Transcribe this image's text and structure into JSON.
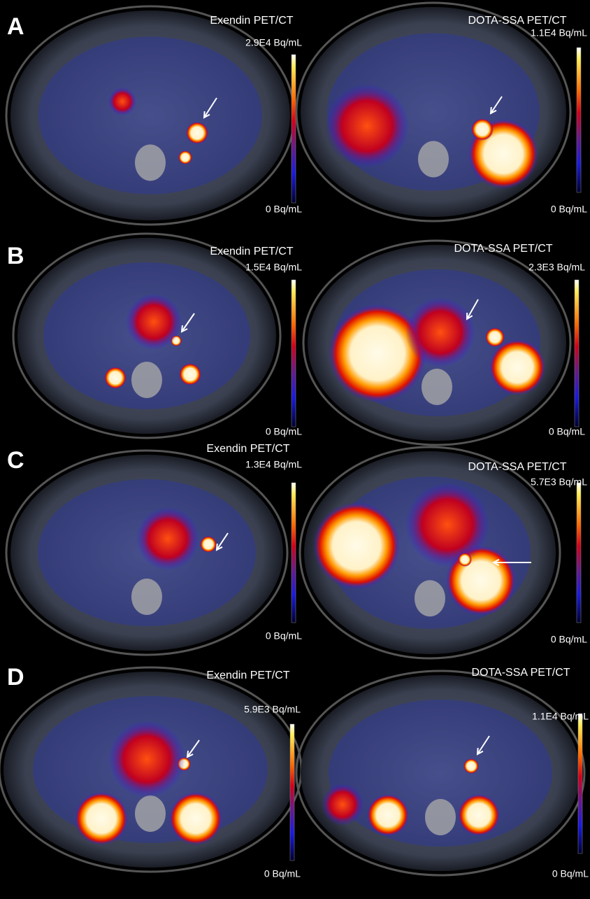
{
  "panels": [
    {
      "letter": "A",
      "images": [
        {
          "title": "Exendin PET/CT",
          "max_label": "2.9E4 Bq/mL",
          "min_label": "0 Bq/mL"
        },
        {
          "title": "DOTA-SSA PET/CT",
          "max_label": "1.1E4 Bq/mL",
          "min_label": "0 Bq/mL"
        }
      ]
    },
    {
      "letter": "B",
      "images": [
        {
          "title": "Exendin PET/CT",
          "max_label": "1.5E4 Bq/mL",
          "min_label": "0 Bq/mL"
        },
        {
          "title": "DOTA-SSA PET/CT",
          "max_label": "2.3E3 Bq/mL",
          "min_label": "0 Bq/mL"
        }
      ]
    },
    {
      "letter": "C",
      "images": [
        {
          "title": "Exendin PET/CT",
          "max_label": "1.3E4 Bq/mL",
          "min_label": "0 Bq/mL"
        },
        {
          "title": "DOTA-SSA PET/CT",
          "max_label": "5.7E3 Bq/mL",
          "min_label": "0 Bq/mL"
        }
      ]
    },
    {
      "letter": "D",
      "images": [
        {
          "title": "Exendin PET/CT",
          "max_label": "5.9E3 Bq/mL",
          "min_label": "0 Bq/mL"
        },
        {
          "title": "DOTA-SSA PET/CT",
          "max_label": "1.1E4 Bq/mL",
          "min_label": "0 Bq/mL"
        }
      ]
    }
  ]
}
